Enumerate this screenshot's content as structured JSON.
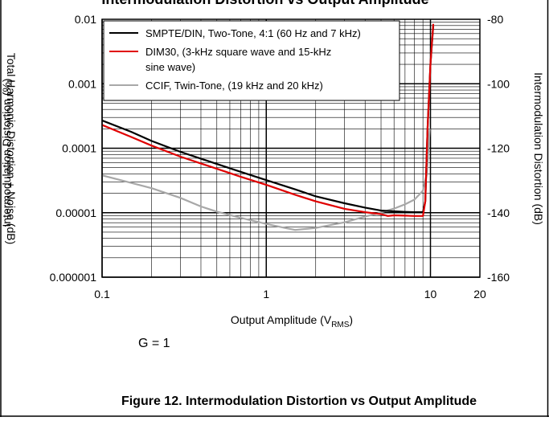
{
  "header": {
    "title": "Intermodulation Distortion vs Output Amplitude"
  },
  "chart_data": {
    "type": "line",
    "title": "",
    "xlabel": "Output Amplitude (V",
    "xlabel_sub": "RMS",
    "xlabel_suffix": ")",
    "ylabel_left": "Intermodulation Distortion (%)",
    "ylabel_left_back": "Total Harmonic Distortion + Noise (dB)",
    "ylabel_right": "Intermodulation Distortion (dB)",
    "x_scale": "log",
    "y_scale": "log",
    "xlim": [
      0.1,
      20
    ],
    "ylim": [
      1e-06,
      0.01
    ],
    "y2lim": [
      -160,
      -80
    ],
    "x_ticks": [
      {
        "v": 0.1,
        "label": "0.1"
      },
      {
        "v": 1,
        "label": "1"
      },
      {
        "v": 10,
        "label": "10"
      },
      {
        "v": 20,
        "label": "20"
      }
    ],
    "y_ticks": [
      {
        "v": 0.01,
        "label": "0.01"
      },
      {
        "v": 0.001,
        "label": "0.001"
      },
      {
        "v": 0.0001,
        "label": "0.0001"
      },
      {
        "v": 1e-05,
        "label": "0.00001"
      },
      {
        "v": 1e-06,
        "label": "0.000001"
      }
    ],
    "y2_ticks": [
      {
        "v": -80,
        "label": "-80"
      },
      {
        "v": -100,
        "label": "-100"
      },
      {
        "v": -120,
        "label": "-120"
      },
      {
        "v": -140,
        "label": "-140"
      },
      {
        "v": -160,
        "label": "-160"
      }
    ],
    "grid": true,
    "legend_position": "top",
    "series": [
      {
        "name": "SMPTE/DIN, Two-Tone, 4:1 (60 Hz and 7 kHz)",
        "color": "#000000",
        "points": [
          [
            0.1,
            0.00027
          ],
          [
            0.15,
            0.00018
          ],
          [
            0.2,
            0.00013
          ],
          [
            0.3,
            8.8e-05
          ],
          [
            0.5,
            5.7e-05
          ],
          [
            0.7,
            4.3e-05
          ],
          [
            1.0,
            3.2e-05
          ],
          [
            1.5,
            2.3e-05
          ],
          [
            2.0,
            1.8e-05
          ],
          [
            3.0,
            1.4e-05
          ],
          [
            4.0,
            1.2e-05
          ],
          [
            5.0,
            1.08e-05
          ],
          [
            6.0,
            1.05e-05
          ],
          [
            7.0,
            1.03e-05
          ],
          [
            8.0,
            1.02e-05
          ],
          [
            9.0,
            1.02e-05
          ],
          [
            9.3,
            1.5e-05
          ],
          [
            9.6,
            0.0002
          ],
          [
            10.0,
            0.002
          ],
          [
            10.4,
            0.008
          ]
        ]
      },
      {
        "name": "DIM30, (3-kHz square wave and 15-kHz sine wave)",
        "name_lines": [
          "DIM30, (3-kHz square wave and 15-kHz",
          "sine wave)"
        ],
        "color": "#e00000",
        "points": [
          [
            0.1,
            0.00023
          ],
          [
            0.15,
            0.00015
          ],
          [
            0.2,
            0.00011
          ],
          [
            0.3,
            7.4e-05
          ],
          [
            0.5,
            4.8e-05
          ],
          [
            0.7,
            3.6e-05
          ],
          [
            1.0,
            2.7e-05
          ],
          [
            1.5,
            1.9e-05
          ],
          [
            2.0,
            1.5e-05
          ],
          [
            3.0,
            1.15e-05
          ],
          [
            4.0,
            1.02e-05
          ],
          [
            5.0,
            9.5e-06
          ],
          [
            5.5,
            8.9e-06
          ],
          [
            6.0,
            9.1e-06
          ],
          [
            7.0,
            9e-06
          ],
          [
            8.0,
            8.9e-06
          ],
          [
            9.0,
            8.9e-06
          ],
          [
            9.3,
            1.5e-05
          ],
          [
            9.6,
            0.0002
          ],
          [
            10.0,
            0.002
          ],
          [
            10.4,
            0.0085
          ]
        ]
      },
      {
        "name": "CCIF, Twin-Tone, (19 kHz and 20 kHz)",
        "color": "#a8a8a8",
        "points": [
          [
            0.1,
            3.8e-05
          ],
          [
            0.15,
            2.9e-05
          ],
          [
            0.2,
            2.4e-05
          ],
          [
            0.3,
            1.7e-05
          ],
          [
            0.4,
            1.25e-05
          ],
          [
            0.5,
            1.04e-05
          ],
          [
            0.7,
            8.3e-06
          ],
          [
            1.0,
            6.7e-06
          ],
          [
            1.3,
            5.8e-06
          ],
          [
            1.5,
            5.4e-06
          ],
          [
            2.0,
            5.8e-06
          ],
          [
            3.0,
            7.1e-06
          ],
          [
            4.0,
            8.7e-06
          ],
          [
            5.0,
            1.01e-05
          ],
          [
            6.0,
            1.16e-05
          ],
          [
            7.0,
            1.35e-05
          ],
          [
            8.0,
            1.6e-05
          ],
          [
            9.0,
            2.2e-05
          ],
          [
            9.5,
            4e-05
          ],
          [
            9.9,
            0.0002
          ]
        ]
      }
    ],
    "annotations": [
      {
        "text": "G = 1"
      }
    ]
  },
  "caption": {
    "text": "Figure 12. Intermodulation Distortion vs Output Amplitude"
  }
}
